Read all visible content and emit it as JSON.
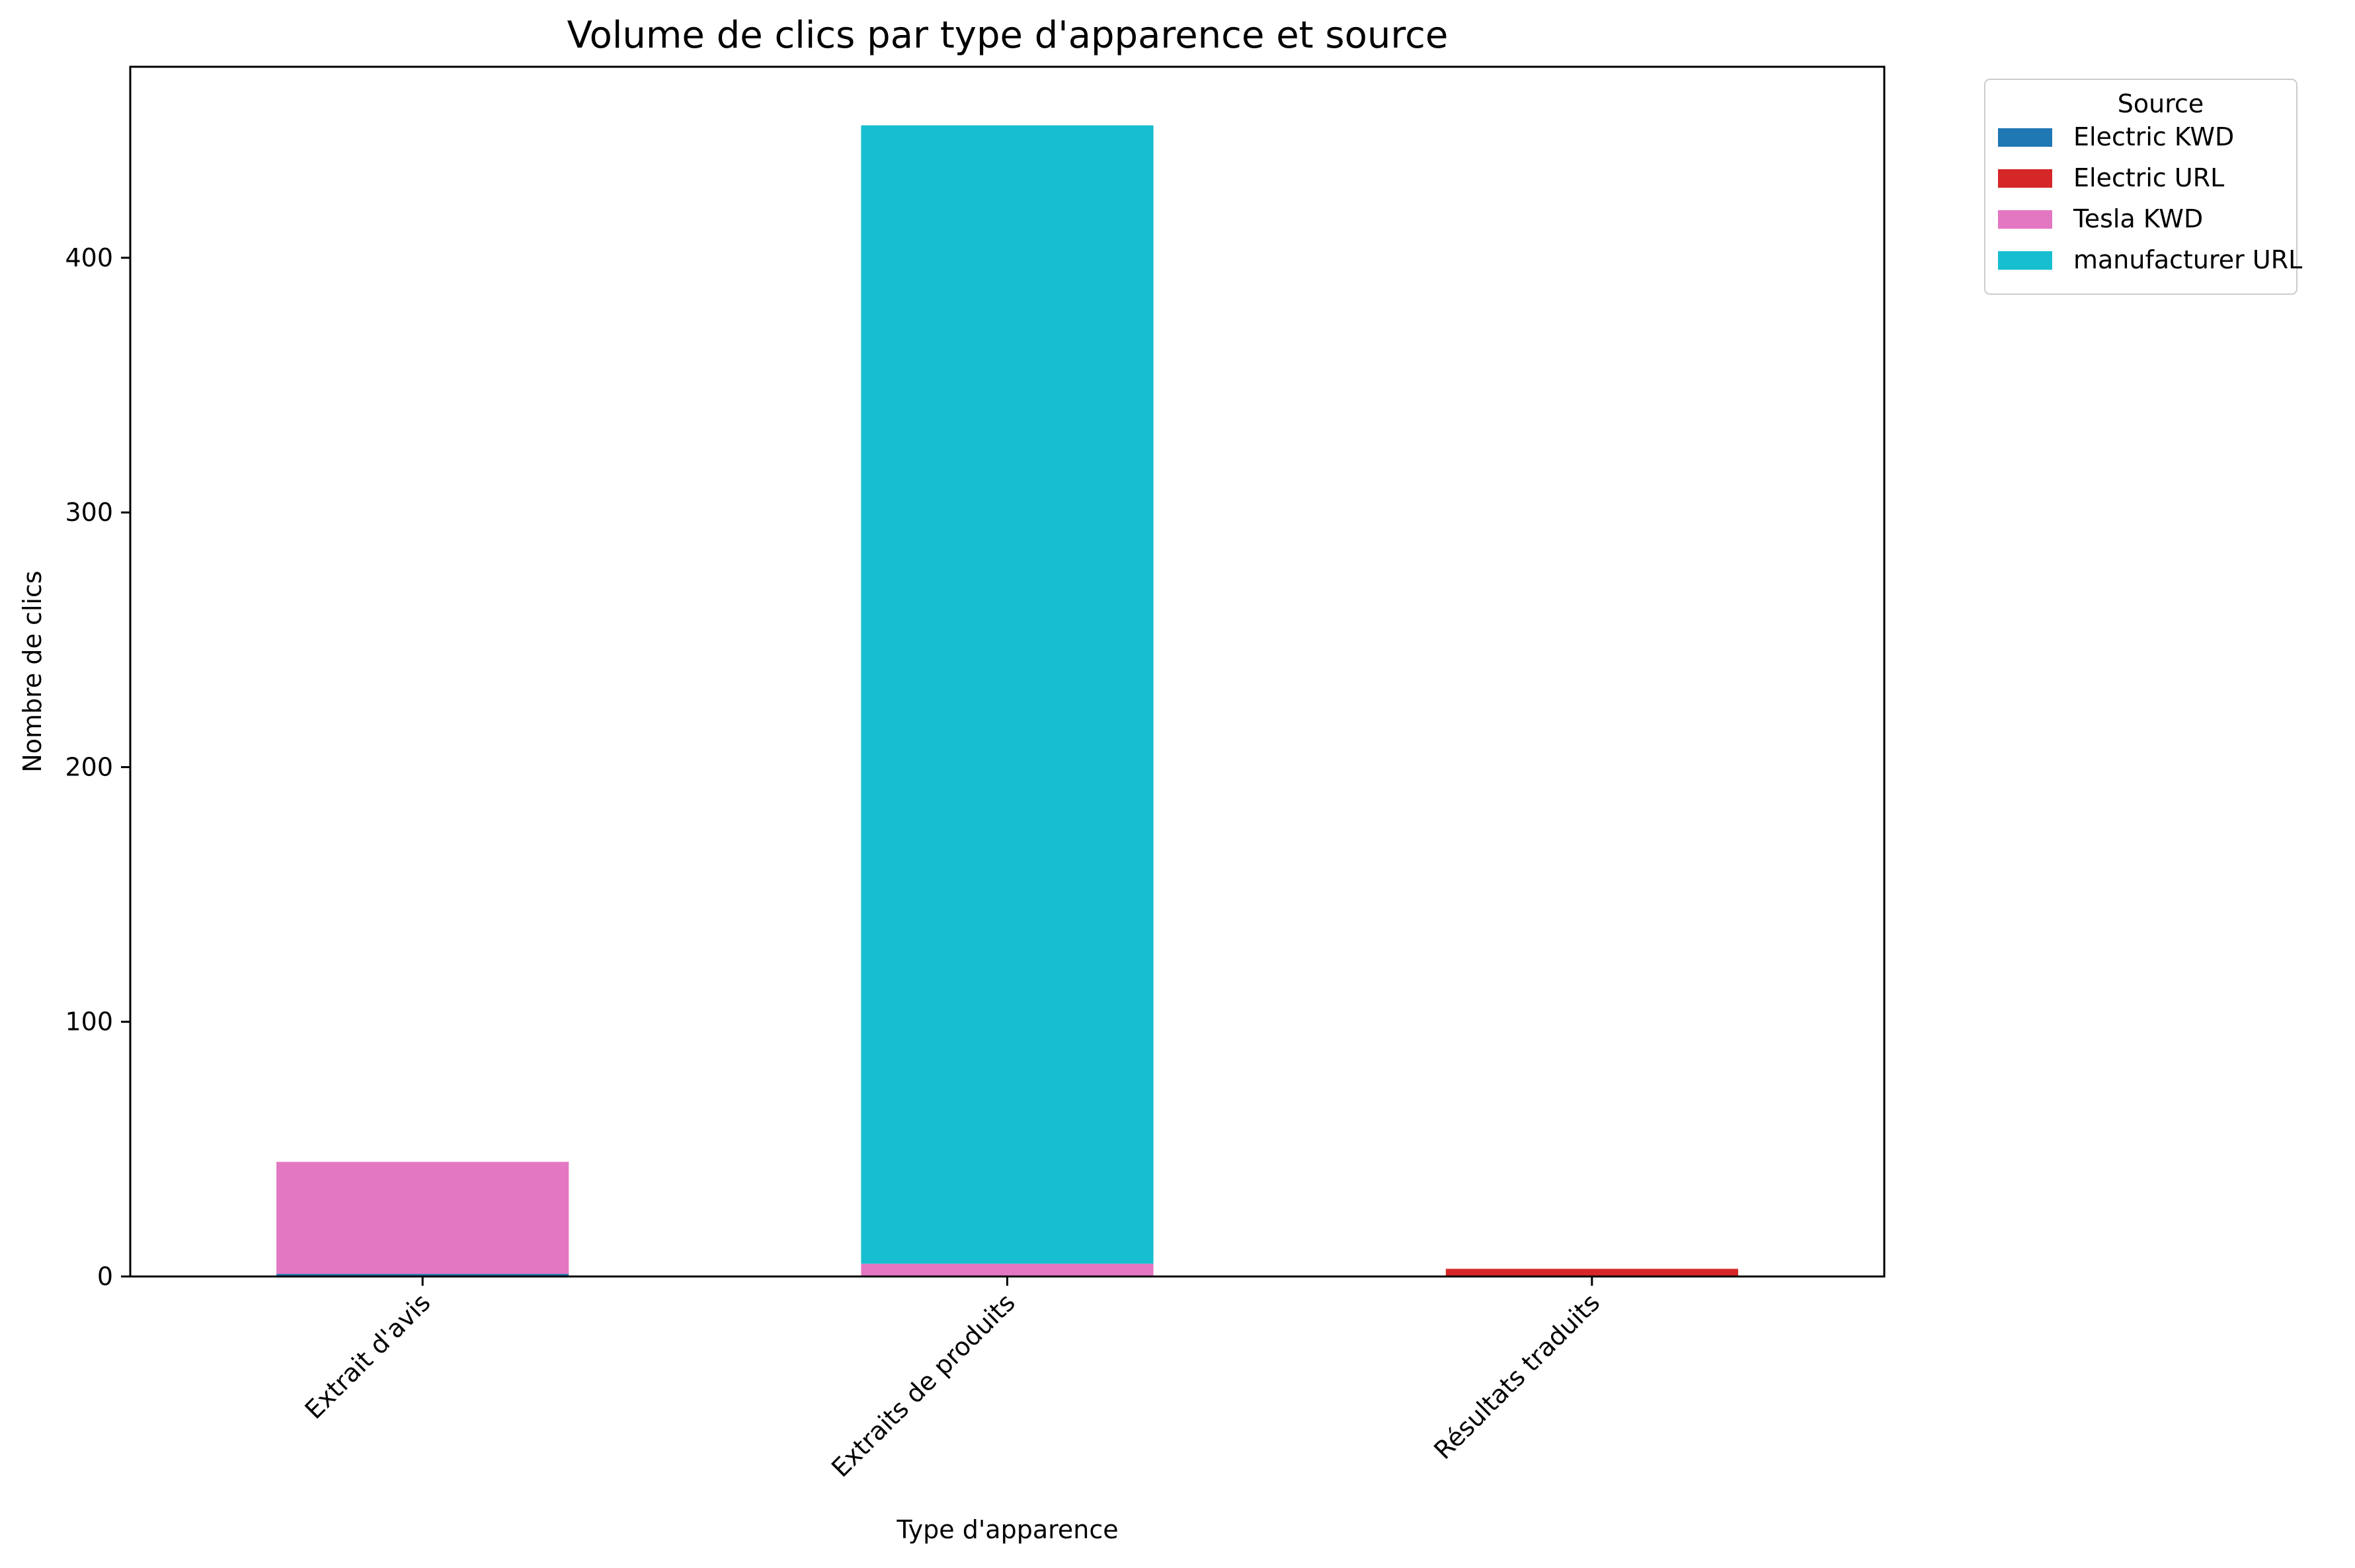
{
  "chart_data": {
    "type": "bar",
    "stacked": true,
    "title": "Volume de clics par type d'apparence et source",
    "xlabel": "Type d'apparence",
    "ylabel": "Nombre de clics",
    "categories": [
      "Extrait d'avis",
      "Extraits de produits",
      "Résultats traduits"
    ],
    "ylim": [
      0,
      475
    ],
    "yticks": [
      0,
      100,
      200,
      300,
      400
    ],
    "grid": false,
    "legend": {
      "title": "Source",
      "placement": "outside-top-right"
    },
    "series": [
      {
        "name": "Electric KWD",
        "color": "#1f77b4",
        "values": [
          1,
          0,
          0
        ]
      },
      {
        "name": "Electric URL",
        "color": "#d62728",
        "values": [
          0,
          0,
          3
        ]
      },
      {
        "name": "Tesla KWD",
        "color": "#e377c2",
        "values": [
          44,
          5,
          0
        ]
      },
      {
        "name": "manufacturer URL",
        "color": "#17becf",
        "values": [
          0,
          447,
          0
        ]
      }
    ]
  }
}
